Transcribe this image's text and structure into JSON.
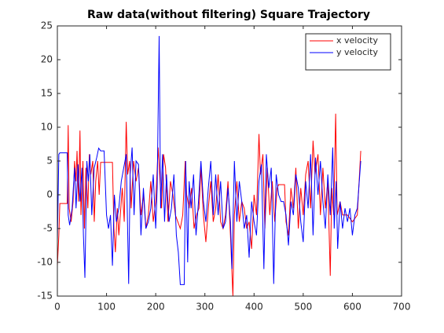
{
  "chart_data": {
    "type": "line",
    "title": "Raw data(without filtering) Square Trajectory",
    "xlim": [
      0,
      700
    ],
    "xticks": [
      0,
      100,
      200,
      300,
      400,
      500,
      600,
      700
    ],
    "ylim": [
      -15,
      25
    ],
    "yticks": [
      -15,
      -10,
      -5,
      0,
      5,
      10,
      15,
      20,
      25
    ],
    "legend": "northeast",
    "grid": false,
    "series": [
      {
        "name": "x velocity",
        "color": "#ff0000",
        "x": [
          0,
          3,
          5,
          20,
          22,
          24,
          28,
          32,
          35,
          38,
          40,
          43,
          46,
          48,
          52,
          55,
          58,
          62,
          65,
          68,
          72,
          75,
          78,
          82,
          85,
          88,
          112,
          115,
          118,
          122,
          125,
          128,
          132,
          136,
          140,
          143,
          147,
          150,
          155,
          160,
          165,
          170,
          175,
          180,
          185,
          190,
          195,
          200,
          205,
          208,
          212,
          216,
          220,
          225,
          230,
          235,
          240,
          245,
          250,
          255,
          260,
          263,
          268,
          273,
          278,
          283,
          288,
          292,
          297,
          302,
          307,
          312,
          317,
          322,
          327,
          332,
          337,
          342,
          347,
          352,
          357,
          360,
          365,
          370,
          375,
          380,
          385,
          390,
          395,
          400,
          405,
          410,
          413,
          418,
          422,
          427,
          432,
          437,
          442,
          447,
          450,
          462,
          465,
          470,
          475,
          480,
          485,
          490,
          495,
          500,
          505,
          510,
          515,
          520,
          524,
          530,
          535,
          540,
          545,
          550,
          555,
          558,
          562,
          566,
          569,
          575,
          580,
          590,
          600,
          610,
          617
        ],
        "values": [
          -10.5,
          -6,
          -1.3,
          -1.3,
          10.3,
          -2,
          -4,
          -1,
          5,
          2,
          6.5,
          -1,
          9.5,
          -3,
          5,
          -5,
          4,
          -2,
          6,
          3,
          5,
          -4,
          2,
          5,
          0,
          4.8,
          4.8,
          -5,
          -8.5,
          -2,
          -6,
          -3,
          1,
          -4,
          10.8,
          3,
          5,
          -2,
          5,
          2,
          4,
          -3,
          0,
          -5,
          -3,
          2,
          -4,
          -1,
          7,
          3,
          -2,
          6,
          4,
          -4,
          2,
          0,
          -3,
          -4,
          -5,
          -3,
          5,
          0,
          -2,
          1,
          -5,
          -3,
          -2,
          4,
          -3,
          -7,
          -2,
          2,
          -4,
          -2,
          3,
          -4,
          -5,
          -3,
          2,
          -6,
          -15,
          -3,
          2,
          -4,
          -1,
          -2,
          -5,
          -4,
          -8,
          0,
          -3,
          9,
          3,
          6,
          -5,
          4,
          -3,
          2,
          -4,
          1,
          1.5,
          1.5,
          -4,
          -6,
          1,
          -2,
          4,
          -5,
          1,
          -3,
          3,
          5,
          -2,
          8,
          3,
          6,
          -3,
          4,
          -2,
          2,
          -12,
          1,
          -3,
          12,
          -3,
          -1,
          -3,
          -3,
          -4,
          -3,
          6.5
        ]
      },
      {
        "name": "y velocity",
        "color": "#0000ff",
        "x": [
          0,
          3,
          5,
          20,
          22,
          25,
          30,
          35,
          38,
          42,
          46,
          50,
          53,
          56,
          60,
          63,
          66,
          70,
          75,
          80,
          84,
          88,
          95,
          100,
          104,
          108,
          112,
          116,
          120,
          125,
          130,
          135,
          140,
          145,
          148,
          152,
          156,
          160,
          165,
          170,
          175,
          180,
          185,
          190,
          195,
          200,
          203,
          207,
          210,
          214,
          218,
          222,
          227,
          232,
          237,
          242,
          246,
          250,
          258,
          261,
          265,
          268,
          272,
          277,
          282,
          287,
          292,
          297,
          302,
          307,
          312,
          317,
          322,
          327,
          332,
          337,
          342,
          347,
          352,
          355,
          360,
          365,
          370,
          375,
          380,
          385,
          390,
          395,
          400,
          405,
          410,
          415,
          420,
          425,
          430,
          435,
          440,
          445,
          450,
          455,
          460,
          465,
          470,
          475,
          480,
          485,
          490,
          495,
          500,
          505,
          510,
          515,
          520,
          525,
          530,
          535,
          540,
          545,
          550,
          555,
          560,
          563,
          567,
          570,
          575,
          580,
          585,
          590,
          595,
          600,
          605,
          610,
          617
        ],
        "values": [
          -7,
          6,
          6.2,
          6.2,
          -3,
          -4.5,
          -2,
          4,
          -2,
          4.5,
          -1,
          4,
          -6,
          -12.3,
          5,
          2,
          6,
          -3,
          4,
          5.5,
          6.9,
          6.5,
          6.5,
          -3,
          -5,
          -3,
          -10.5,
          0,
          -4,
          -2,
          2,
          4,
          6,
          -13.2,
          3,
          7,
          -3,
          5,
          4.5,
          -6,
          1,
          -5,
          -4,
          -2,
          3,
          -5,
          1,
          23.5,
          -2,
          6,
          -4,
          3,
          -4,
          -2,
          3,
          -6,
          -8.5,
          -13.3,
          -13.3,
          5,
          -10,
          2,
          -2,
          3,
          -6,
          -1,
          5,
          -1,
          -4,
          1,
          5,
          -3,
          3,
          -3,
          2,
          -5,
          -4,
          1,
          -4,
          -11,
          5,
          -4,
          2,
          -1,
          -5,
          -3,
          -9.3,
          -1,
          -4,
          -6,
          2,
          4.5,
          -11,
          6,
          1,
          4,
          -13.2,
          3,
          0,
          -1,
          -1,
          -3,
          -7.5,
          -1,
          -3,
          3,
          1,
          -4,
          -7,
          2,
          -2,
          6,
          -6,
          5.5,
          0,
          5,
          -1,
          -5,
          3,
          -3,
          7,
          -5,
          2,
          -8,
          -1,
          -5,
          -2,
          -4,
          -2,
          -6,
          -3,
          -2,
          5
        ]
      }
    ]
  }
}
